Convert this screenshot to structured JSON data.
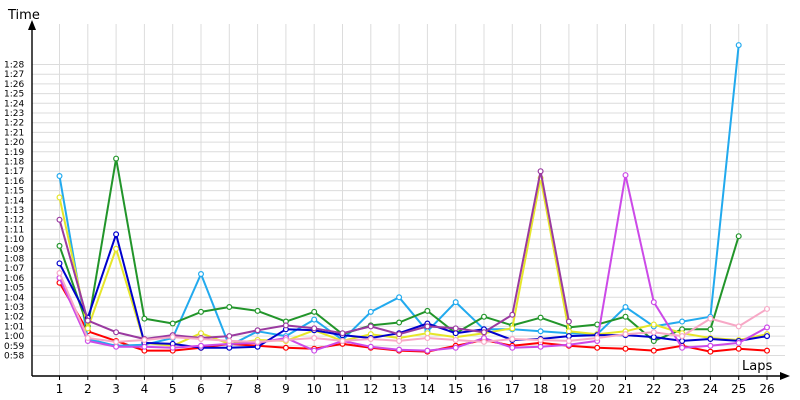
{
  "chart_data": {
    "type": "line",
    "ylabel": "Time",
    "xlabel": "Laps",
    "x": [
      1,
      2,
      3,
      4,
      5,
      6,
      7,
      8,
      9,
      10,
      11,
      12,
      13,
      14,
      15,
      16,
      17,
      18,
      19,
      20,
      21,
      22,
      23,
      24,
      25,
      26
    ],
    "y_ticks": [
      "0:58",
      "0:59",
      "1:00",
      "1:01",
      "1:02",
      "1:03",
      "1:04",
      "1:05",
      "1:06",
      "1:07",
      "1:08",
      "1:09",
      "1:10",
      "1:11",
      "1:12",
      "1:13",
      "1:14",
      "1:15",
      "1:16",
      "1:17",
      "1:18",
      "1:19",
      "1:20",
      "1:21",
      "1:22",
      "1:23",
      "1:24",
      "1:25",
      "1:26",
      "1:27",
      "1:28"
    ],
    "ylim_seconds": [
      57,
      90
    ],
    "y_unit": "seconds",
    "grid": true,
    "series": [
      {
        "color": "#ff0000",
        "values": [
          65.5,
          60.5,
          59.5,
          58.5,
          58.5,
          58.8,
          59.2,
          59.0,
          58.8,
          58.7,
          59.2,
          58.8,
          58.5,
          58.4,
          59.0,
          59.6,
          59.0,
          59.3,
          59.0,
          58.8,
          58.7,
          58.5,
          59.0,
          58.4,
          58.7,
          58.5
        ]
      },
      {
        "color": "#22aaee",
        "values": [
          76.5,
          59.7,
          59.0,
          59.1,
          59.8,
          66.4,
          59.0,
          60.5,
          60.0,
          61.7,
          59.6,
          62.5,
          64.0,
          60.5,
          63.5,
          60.7,
          60.7,
          60.5,
          60.3,
          60.2,
          63.0,
          61.0,
          61.5,
          62.0,
          90.0,
          null
        ]
      },
      {
        "color": "#22952a",
        "values": [
          69.3,
          61.0,
          78.3,
          61.8,
          61.3,
          62.5,
          63.0,
          62.6,
          61.5,
          62.5,
          60.2,
          61.1,
          61.4,
          62.6,
          60.3,
          62.0,
          61.1,
          61.9,
          60.9,
          61.2,
          62.0,
          59.5,
          60.7,
          60.7,
          70.3,
          null
        ]
      },
      {
        "color": "#e6e62a",
        "values": [
          74.3,
          60.8,
          69.0,
          59.3,
          59.0,
          60.3,
          59.2,
          59.6,
          59.5,
          60.6,
          59.5,
          60.2,
          59.8,
          60.3,
          59.9,
          60.3,
          60.8,
          76.3,
          60.5,
          60.2,
          60.5,
          61.2,
          60.3,
          59.8,
          59.6,
          60.2
        ]
      },
      {
        "color": "#0000cc",
        "values": [
          67.5,
          61.9,
          70.5,
          59.3,
          59.2,
          58.8,
          58.8,
          58.9,
          60.7,
          60.6,
          60.1,
          59.8,
          60.3,
          61.3,
          60.3,
          60.7,
          59.6,
          59.7,
          60.0,
          60.1,
          60.1,
          59.9,
          59.5,
          59.7,
          59.5,
          60.0
        ]
      },
      {
        "color": "#9a3aa0",
        "values": [
          72.0,
          61.6,
          60.4,
          59.7,
          60.1,
          59.8,
          60.0,
          60.6,
          61.1,
          60.8,
          60.3,
          61.0,
          60.2,
          61.0,
          60.8,
          60.4,
          62.2,
          77.0,
          61.5,
          null,
          null,
          null,
          null,
          null,
          null,
          null
        ]
      },
      {
        "color": "#cc4ae8",
        "values": [
          66.0,
          59.5,
          58.9,
          58.9,
          58.8,
          59.0,
          59.2,
          59.3,
          59.8,
          58.5,
          59.5,
          58.9,
          58.6,
          58.5,
          58.8,
          59.8,
          58.8,
          58.9,
          59.1,
          59.5,
          76.6,
          63.5,
          58.8,
          59.0,
          59.3,
          60.9
        ]
      },
      {
        "color": "#f7a8c6",
        "values": [
          66.5,
          59.8,
          59.4,
          59.6,
          59.9,
          59.7,
          59.5,
          59.4,
          59.6,
          59.8,
          59.5,
          59.7,
          59.5,
          59.8,
          59.6,
          59.4,
          59.7,
          59.6,
          59.5,
          59.8,
          60.2,
          60.4,
          60.0,
          61.8,
          61.0,
          62.8
        ]
      }
    ]
  }
}
